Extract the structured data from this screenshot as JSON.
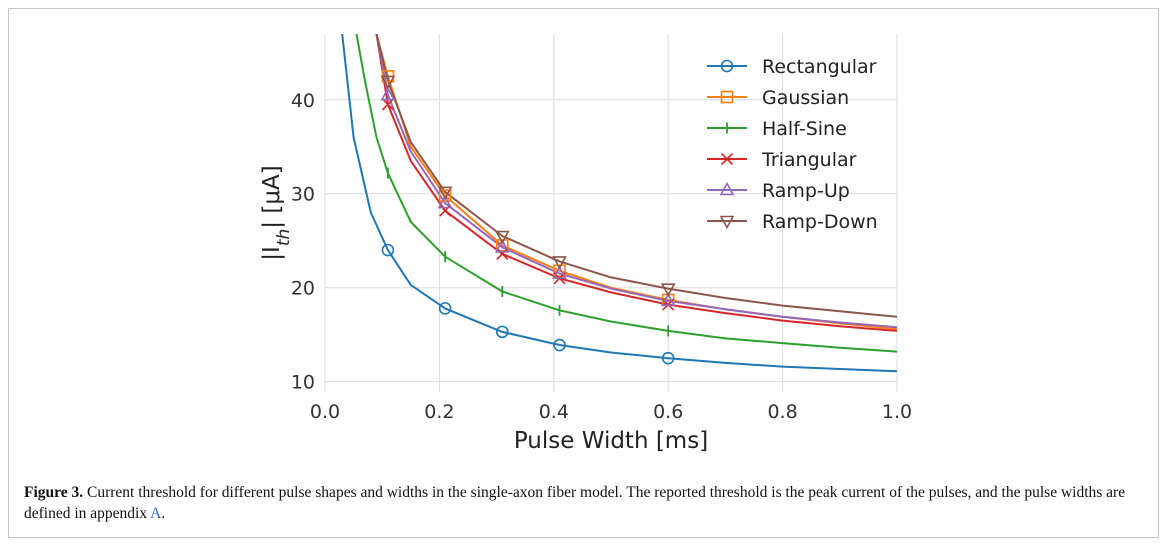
{
  "caption": {
    "label": "Figure 3.",
    "text_before_link": " Current threshold for different pulse shapes and widths in the single-axon fiber model. The reported threshold is the peak current of the pulses, and the pulse widths are defined in appendix ",
    "link": "A",
    "text_after_link": "."
  },
  "chart_data": {
    "type": "line",
    "xlabel": "Pulse Width [ms]",
    "ylabel_parts": {
      "pre": "|I",
      "sub": "th",
      "post": "| [μA]"
    },
    "xlim": [
      0.0,
      1.0
    ],
    "ylim": [
      8.9,
      47.0
    ],
    "xticks": [
      0.0,
      0.2,
      0.4,
      0.6,
      0.8,
      1.0
    ],
    "xtick_labels": [
      "0.0",
      "0.2",
      "0.4",
      "0.6",
      "0.8",
      "1.0"
    ],
    "yticks": [
      10,
      20,
      30,
      40
    ],
    "ytick_labels": [
      "10",
      "20",
      "30",
      "40"
    ],
    "grid": true,
    "legend_position": "top-right",
    "marker_x": [
      0.11,
      0.21,
      0.31,
      0.41,
      0.6
    ],
    "series": [
      {
        "name": "Rectangular",
        "color": "#1f77b4",
        "marker": "circle",
        "curve": [
          [
            0.03,
            47.0
          ],
          [
            0.05,
            36.0
          ],
          [
            0.08,
            28.0
          ],
          [
            0.11,
            24.0
          ],
          [
            0.15,
            20.3
          ],
          [
            0.21,
            17.8
          ],
          [
            0.31,
            15.3
          ],
          [
            0.41,
            13.9
          ],
          [
            0.5,
            13.1
          ],
          [
            0.6,
            12.5
          ],
          [
            0.7,
            12.0
          ],
          [
            0.8,
            11.6
          ],
          [
            0.9,
            11.35
          ],
          [
            1.0,
            11.1
          ]
        ],
        "markers": [
          24.0,
          17.8,
          15.3,
          13.9,
          12.5
        ]
      },
      {
        "name": "Gaussian",
        "color": "#ff7f0e",
        "marker": "square",
        "curve": [
          [
            0.09,
            47.0
          ],
          [
            0.11,
            42.5
          ],
          [
            0.15,
            35.0
          ],
          [
            0.21,
            29.8
          ],
          [
            0.31,
            24.5
          ],
          [
            0.41,
            21.8
          ],
          [
            0.5,
            20.0
          ],
          [
            0.6,
            18.7
          ],
          [
            0.7,
            17.7
          ],
          [
            0.8,
            16.9
          ],
          [
            0.9,
            16.2
          ],
          [
            1.0,
            15.6
          ]
        ],
        "markers": [
          42.5,
          29.8,
          24.5,
          21.8,
          18.7
        ]
      },
      {
        "name": "Half-Sine",
        "color": "#2ca02c",
        "marker": "vline",
        "curve": [
          [
            0.055,
            47.0
          ],
          [
            0.07,
            42.0
          ],
          [
            0.09,
            36.0
          ],
          [
            0.11,
            32.2
          ],
          [
            0.15,
            27.0
          ],
          [
            0.21,
            23.3
          ],
          [
            0.31,
            19.6
          ],
          [
            0.41,
            17.6
          ],
          [
            0.5,
            16.4
          ],
          [
            0.6,
            15.4
          ],
          [
            0.7,
            14.6
          ],
          [
            0.8,
            14.1
          ],
          [
            0.9,
            13.6
          ],
          [
            1.0,
            13.2
          ]
        ],
        "markers": [
          32.2,
          23.3,
          19.6,
          17.6,
          15.4
        ]
      },
      {
        "name": "Triangular",
        "color": "#d62728",
        "marker": "x",
        "curve": [
          [
            0.09,
            47.0
          ],
          [
            0.11,
            39.5
          ],
          [
            0.15,
            33.5
          ],
          [
            0.21,
            28.2
          ],
          [
            0.31,
            23.6
          ],
          [
            0.41,
            21.0
          ],
          [
            0.5,
            19.5
          ],
          [
            0.6,
            18.2
          ],
          [
            0.7,
            17.3
          ],
          [
            0.8,
            16.5
          ],
          [
            0.9,
            15.9
          ],
          [
            1.0,
            15.4
          ]
        ],
        "markers": [
          39.5,
          28.2,
          23.6,
          21.0,
          18.2
        ]
      },
      {
        "name": "Ramp-Up",
        "color": "#9467bd",
        "marker": "triangle-up",
        "curve": [
          [
            0.09,
            47.0
          ],
          [
            0.11,
            40.5
          ],
          [
            0.15,
            34.5
          ],
          [
            0.21,
            29.0
          ],
          [
            0.31,
            24.3
          ],
          [
            0.41,
            21.5
          ],
          [
            0.5,
            19.9
          ],
          [
            0.6,
            18.6
          ],
          [
            0.7,
            17.7
          ],
          [
            0.8,
            16.9
          ],
          [
            0.9,
            16.3
          ],
          [
            1.0,
            15.8
          ]
        ],
        "markers": [
          40.5,
          29.0,
          24.3,
          21.5,
          18.6
        ]
      },
      {
        "name": "Ramp-Down",
        "color": "#8c564b",
        "marker": "triangle-down",
        "curve": [
          [
            0.09,
            47.0
          ],
          [
            0.11,
            42.0
          ],
          [
            0.15,
            35.5
          ],
          [
            0.21,
            30.2
          ],
          [
            0.31,
            25.5
          ],
          [
            0.41,
            22.8
          ],
          [
            0.5,
            21.1
          ],
          [
            0.6,
            19.9
          ],
          [
            0.7,
            18.9
          ],
          [
            0.8,
            18.1
          ],
          [
            0.9,
            17.5
          ],
          [
            1.0,
            16.9
          ]
        ],
        "markers": [
          42.0,
          30.2,
          25.5,
          22.8,
          19.9
        ]
      }
    ]
  }
}
